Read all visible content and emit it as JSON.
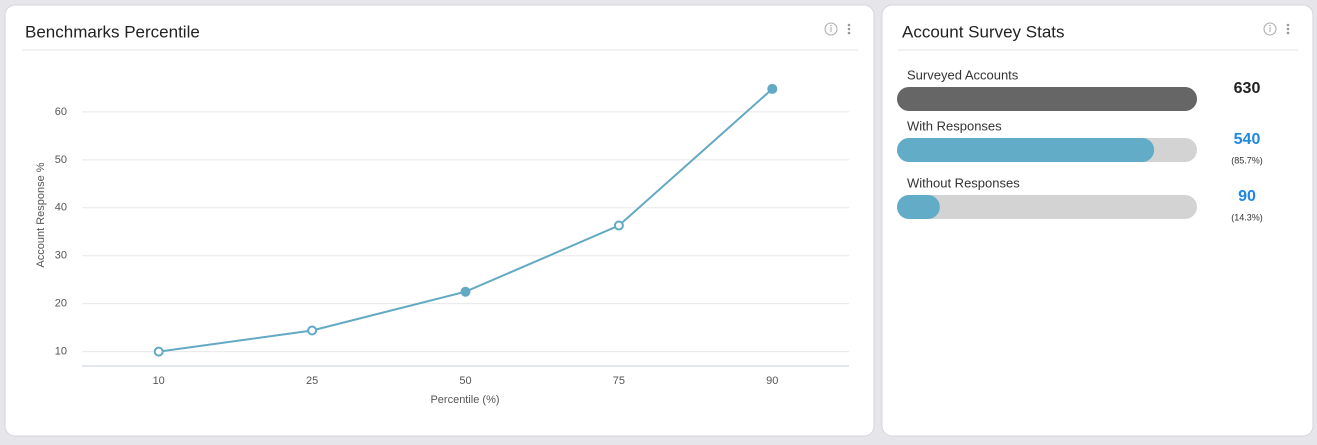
{
  "chart_data": {
    "type": "line",
    "title": "Benchmarks Percentile",
    "x_label": "Percentile (%)",
    "y_label": "Account Response %",
    "categories": [
      "10",
      "25",
      "50",
      "75",
      "90"
    ],
    "series": [
      {
        "name": "Account Response %",
        "color": "#62a9c4",
        "values": [
          10.0,
          14.4,
          22.5,
          36.3,
          64.8
        ],
        "filled_points": [
          false,
          false,
          true,
          false,
          true
        ]
      }
    ],
    "ylim": [
      7,
      70
    ],
    "yticks": [
      10,
      20,
      30,
      40,
      50,
      60
    ],
    "grid": true,
    "legend": false
  },
  "survey": {
    "title": "Account Survey Stats",
    "items": [
      {
        "label": "Surveyed Accounts",
        "value": 630,
        "color": "#666666",
        "value_color": "#222222"
      },
      {
        "label": "With Responses",
        "value": 540,
        "share": "(85.7%)",
        "color": "#62acc8",
        "value_color": "#1e88e5"
      },
      {
        "label": "Without Responses",
        "value": 90,
        "share": "(14.3%)",
        "color": "#62acc8",
        "value_color": "#1e88e5"
      }
    ]
  }
}
